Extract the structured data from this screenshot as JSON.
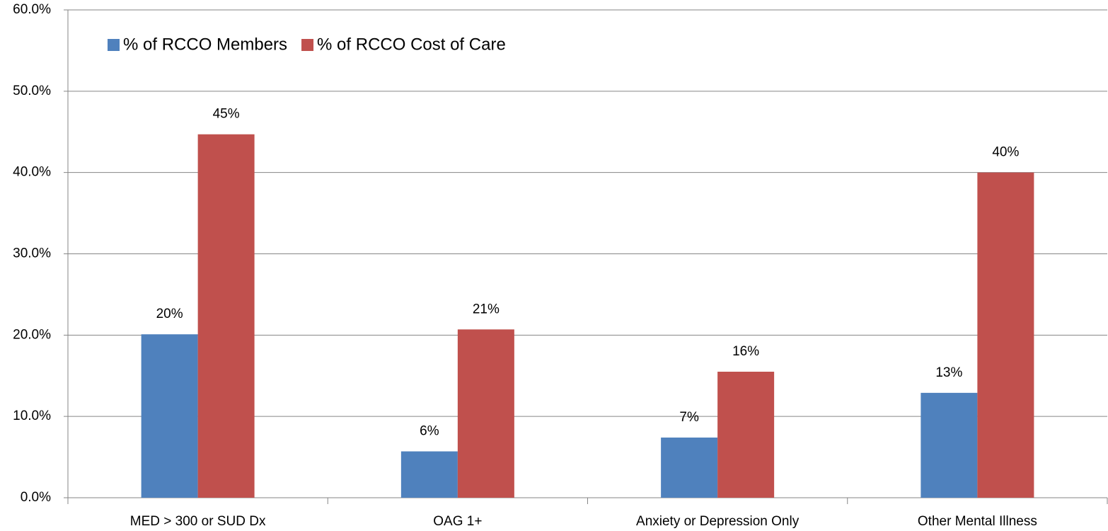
{
  "chart_data": {
    "type": "bar",
    "categories": [
      "MED > 300 or SUD Dx",
      "OAG 1+",
      "Anxiety or Depression Only",
      "Other Mental Illness"
    ],
    "series": [
      {
        "name": "% of RCCO Members",
        "color": "#4f81bd",
        "values": [
          20.1,
          5.7,
          7.4,
          12.9
        ],
        "value_labels": [
          "20%",
          "6%",
          "7%",
          "13%"
        ]
      },
      {
        "name": "% of RCCO Cost of Care",
        "color": "#c0504d",
        "values": [
          44.7,
          20.7,
          15.5,
          40.0
        ],
        "value_labels": [
          "45%",
          "21%",
          "16%",
          "40%"
        ]
      }
    ],
    "ylim": [
      0,
      60
    ],
    "yticks": [
      {
        "value": 0,
        "label": "0.0%"
      },
      {
        "value": 10,
        "label": "10.0%"
      },
      {
        "value": 20,
        "label": "20.0%"
      },
      {
        "value": 30,
        "label": "30.0%"
      },
      {
        "value": 40,
        "label": "40.0%"
      },
      {
        "value": 50,
        "label": "50.0%"
      },
      {
        "value": 60,
        "label": "60.0%"
      }
    ],
    "grid": true,
    "legend": "top-left"
  }
}
